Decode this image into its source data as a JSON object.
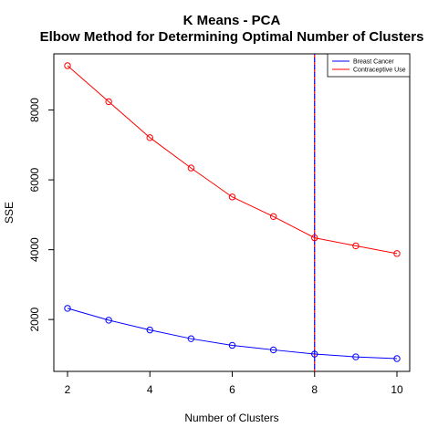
{
  "chart_data": {
    "type": "line",
    "title": "K Means - PCA",
    "subtitle": "Elbow Method for Determining Optimal Number of Clusters",
    "xlabel": "Number of Clusters",
    "ylabel": "SSE",
    "x": [
      2,
      3,
      4,
      5,
      6,
      7,
      8,
      9,
      10
    ],
    "xlim": [
      2,
      10
    ],
    "ylim": [
      880,
      9270
    ],
    "xticks": [
      "2",
      "4",
      "6",
      "8",
      "10"
    ],
    "yticks": [
      "2000",
      "4000",
      "6000",
      "8000"
    ],
    "series": [
      {
        "name": "Breast Cancer",
        "color": "#0000ff",
        "values": [
          2320,
          1980,
          1700,
          1450,
          1260,
          1130,
          1010,
          930,
          880
        ]
      },
      {
        "name": "Contraceptive Use",
        "color": "#ff0000",
        "values": [
          9270,
          8240,
          7210,
          6340,
          5510,
          4950,
          4340,
          4110,
          3890
        ]
      }
    ],
    "reference_line": {
      "x": 8,
      "colors": [
        "#ff0000",
        "#0000ff"
      ],
      "style": "dashed"
    },
    "grid": false,
    "legend_position": "top-right"
  }
}
